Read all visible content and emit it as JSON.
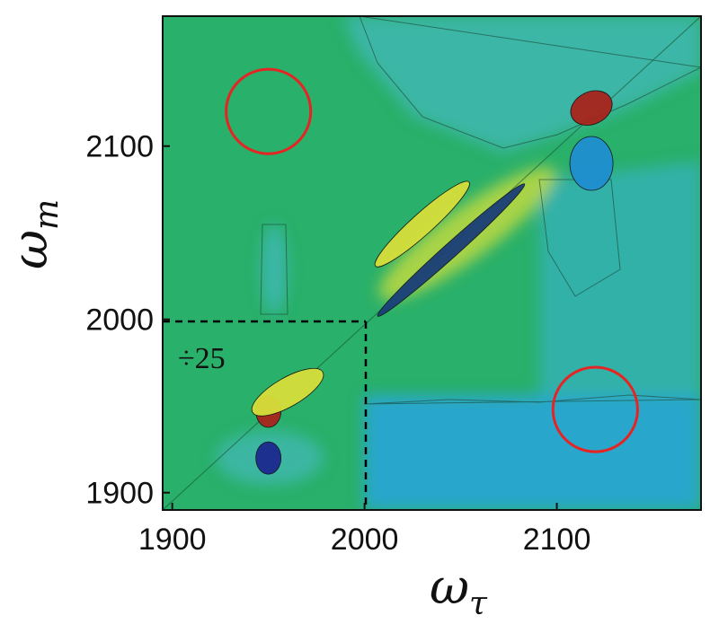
{
  "chart_data": {
    "type": "heatmap",
    "title": "",
    "xlabel": {
      "main": "ω",
      "sub": "τ"
    },
    "ylabel": {
      "main": "ω",
      "sub": "m"
    },
    "xlim": [
      1895,
      2175
    ],
    "ylim": [
      1890,
      2175
    ],
    "xticks": [
      1900,
      2000,
      2100
    ],
    "yticks": [
      1900,
      2000,
      2100
    ],
    "colormap": [
      "#1e2fa0",
      "#1f9fd8",
      "#3fb79a",
      "#29b06a",
      "#d8df3a",
      "#e79a28",
      "#b0241d"
    ],
    "background_color": "#29b06a",
    "features": [
      {
        "x": 2118,
        "y": 2122,
        "value": 1.0,
        "label": "diagonal peak"
      },
      {
        "x": 2118,
        "y": 2090,
        "value": -0.6,
        "label": "negative cross lobe"
      },
      {
        "x": 2045,
        "y": 2040,
        "value": -0.8,
        "label": "diagonal ridge"
      },
      {
        "x": 2030,
        "y": 2055,
        "value": 0.4,
        "label": "yellow ridge"
      },
      {
        "x": 1950,
        "y": 1947,
        "value": 1.0,
        "label": "diagonal peak ÷25"
      },
      {
        "x": 1950,
        "y": 1920,
        "value": -1.0,
        "label": "negative lobe ÷25"
      },
      {
        "x": 1960,
        "y": 1958,
        "value": 0.35,
        "label": "yellow halo"
      }
    ],
    "annotations": {
      "scale_factor_text": "÷25",
      "scaled_region": {
        "x": [
          1895,
          2000
        ],
        "y": [
          1890,
          2000
        ]
      },
      "circles": [
        {
          "x": 1950,
          "y": 2120,
          "radius": 22
        },
        {
          "x": 2120,
          "y": 1948,
          "radius": 22
        }
      ]
    },
    "grid": false,
    "legend": "none"
  }
}
